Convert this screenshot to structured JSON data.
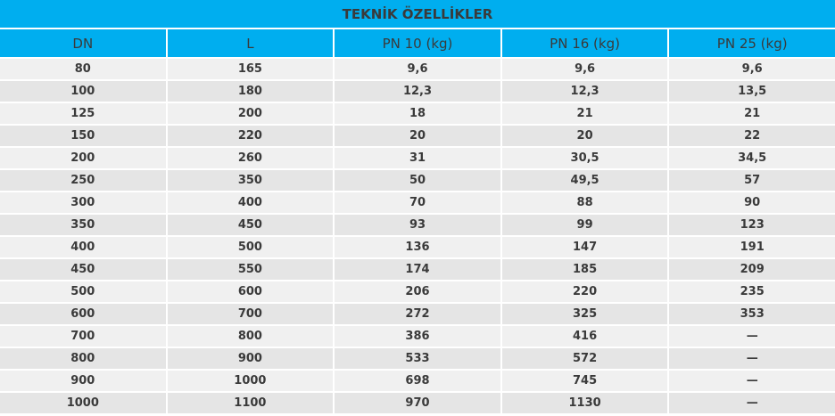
{
  "title": "TEKNİK ÖZELLİKLER",
  "headers": [
    "DN",
    "L",
    "PN 10 (kg)",
    "PN 16 (kg)",
    "PN 25 (kg)"
  ],
  "rows": [
    [
      "80",
      "165",
      "9,6",
      "9,6",
      "9,6"
    ],
    [
      "100",
      "180",
      "12,3",
      "12,3",
      "13,5"
    ],
    [
      "125",
      "200",
      "18",
      "21",
      "21"
    ],
    [
      "150",
      "220",
      "20",
      "20",
      "22"
    ],
    [
      "200",
      "260",
      "31",
      "30,5",
      "34,5"
    ],
    [
      "250",
      "350",
      "50",
      "49,5",
      "57"
    ],
    [
      "300",
      "400",
      "70",
      "88",
      "90"
    ],
    [
      "350",
      "450",
      "93",
      "99",
      "123"
    ],
    [
      "400",
      "500",
      "136",
      "147",
      "191"
    ],
    [
      "450",
      "550",
      "174",
      "185",
      "209"
    ],
    [
      "500",
      "600",
      "206",
      "220",
      "235"
    ],
    [
      "600",
      "700",
      "272",
      "325",
      "353"
    ],
    [
      "700",
      "800",
      "386",
      "416",
      "—"
    ],
    [
      "800",
      "900",
      "533",
      "572",
      "—"
    ],
    [
      "900",
      "1000",
      "698",
      "745",
      "—"
    ],
    [
      "1000",
      "1100",
      "970",
      "1130",
      "—"
    ]
  ],
  "colors": {
    "header": "#00aeef",
    "row_light": "#f0f0f0",
    "row_dark": "#e5e5e5",
    "text": "#3a3a3a"
  }
}
